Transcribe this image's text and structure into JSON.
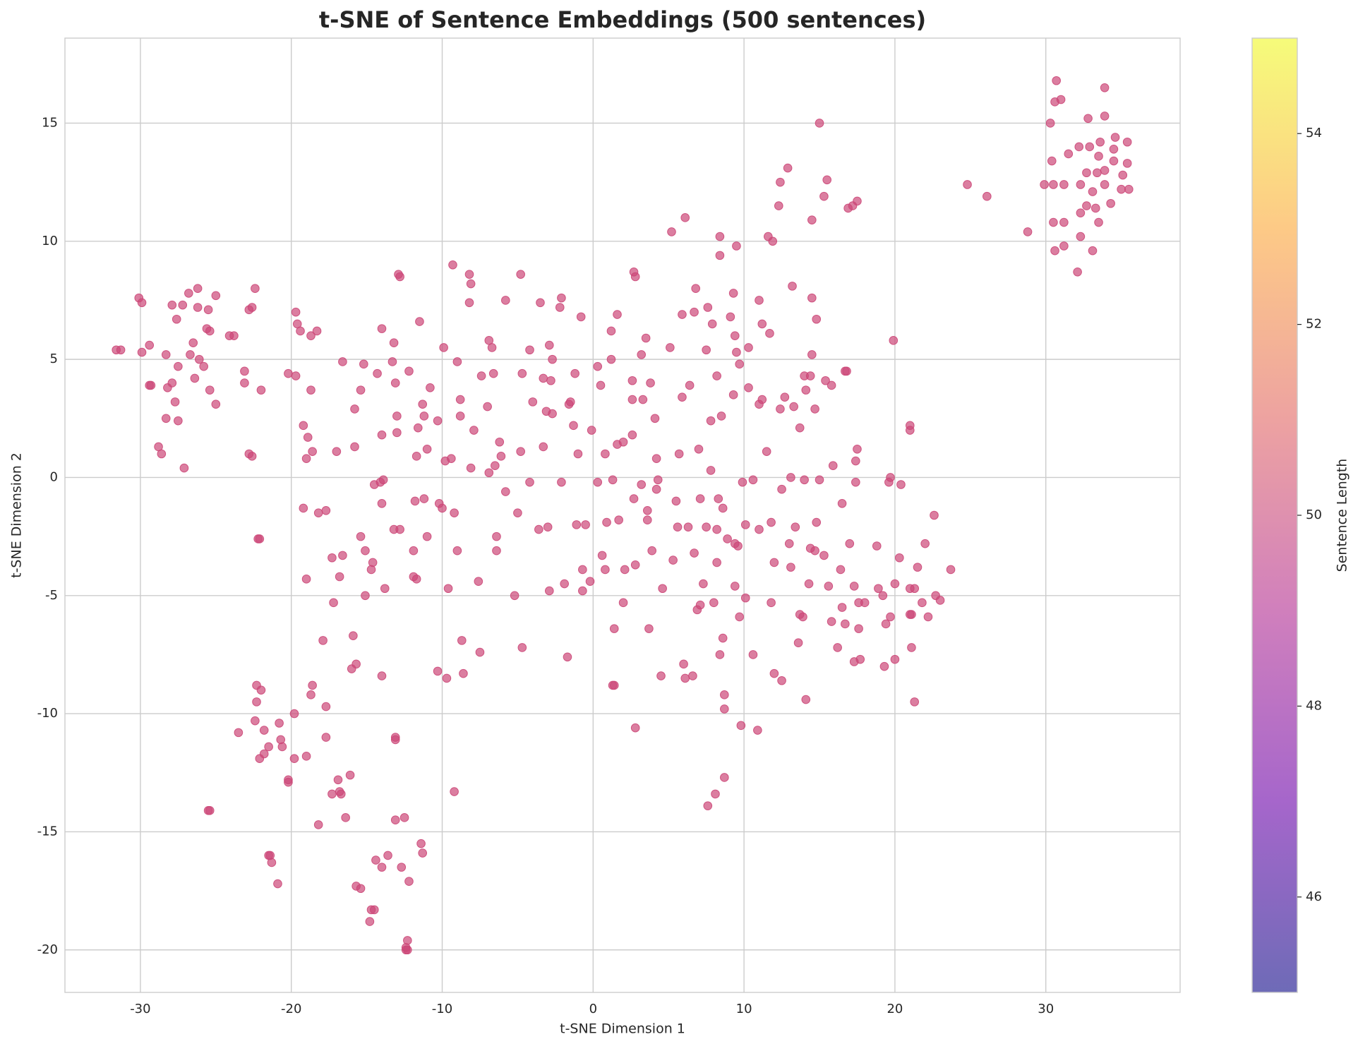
{
  "chart_data": {
    "type": "scatter",
    "title": "t-SNE of Sentence Embeddings (500 sentences)",
    "xlabel": "t-SNE Dimension 1",
    "ylabel": "t-SNE Dimension 2",
    "color": "#cc4778",
    "alpha": 0.7,
    "grid": true,
    "xlim": [
      -35,
      38.9
    ],
    "ylim": [
      -21.8,
      18.6
    ],
    "xticks": [
      -30,
      -20,
      -10,
      0,
      10,
      20,
      30
    ],
    "yticks": [
      -20,
      -15,
      -10,
      -5,
      0,
      5,
      10,
      15
    ],
    "colorbar": {
      "label": "Sentence Length",
      "lim": [
        45,
        55
      ],
      "ticks": [
        46,
        48,
        50,
        52,
        54
      ],
      "alpha": 0.6,
      "colors": [
        "#0d0887",
        "#6a00a8",
        "#b12a90",
        "#e16462",
        "#fca636",
        "#f0f921"
      ]
    },
    "x": [
      30.7,
      33.9,
      30.6,
      31,
      30.3,
      32.8,
      33.9,
      34.6,
      35.4,
      33.6,
      32.2,
      32.9,
      33.5,
      34.5,
      31.5,
      30.4,
      34.5,
      35.4,
      32.7,
      33.4,
      33.9,
      35.1,
      29.9,
      30.5,
      31.2,
      32.3,
      33.9,
      35,
      35.5,
      33.1,
      32.7,
      33.3,
      34.3,
      32.3,
      30.5,
      31.2,
      33.5,
      32.3,
      28.8,
      31.2,
      30.6,
      33.1,
      32.1,
      24.8,
      26.1,
      -31.6,
      -31.3,
      -30.1,
      -29.9,
      -29.9,
      -29.4,
      -29.4,
      -29.3,
      -28.3,
      -28.2,
      -27.9,
      -27.9,
      -27.7,
      -27.6,
      -27.5,
      -27.5,
      -28.3,
      -28.8,
      -28.6,
      -27.2,
      -26.8,
      -26.7,
      -26.5,
      -26.4,
      -26.2,
      -26.2,
      -26.1,
      -25.8,
      -25.6,
      -25.5,
      -25.4,
      -25.4,
      -25,
      -25,
      -27.1,
      -24.1,
      -23.8,
      -23.1,
      -23.1,
      -22.8,
      -22.6,
      -22.4,
      -22.8,
      -22.6,
      -22,
      -22.2,
      -22.1,
      -25.5,
      -25.4,
      -23.5,
      -22.4,
      -22.3,
      -22.3,
      -22,
      -21.8,
      -22.1,
      -21.8,
      -21.5,
      -21.5,
      -21.4,
      -21.3,
      -20.9,
      -20.8,
      -20.7,
      -20.6,
      -20.2,
      -20.2,
      -19.8,
      -19.8,
      -19,
      -18.7,
      -18.6,
      -18.2,
      -17.7,
      -17.7,
      -17.9,
      -17.3,
      -16.9,
      -16.8,
      -16.7,
      -16.4,
      -16.1,
      -16,
      -15.9,
      -15.7,
      -15.7,
      -15.4,
      -14.8,
      -14.7,
      -14.5,
      -14.4,
      -14,
      -14,
      -13.6,
      -13.1,
      -13.1,
      -13.1,
      -12.7,
      -12.5,
      -12.2,
      -12.3,
      -12.4,
      -12.4,
      -12.3,
      -11.4,
      -11.3,
      -9.2,
      -20.2,
      -19.7,
      -19.7,
      -19.6,
      -19.4,
      -19.2,
      -18.9,
      -19,
      -18.7,
      -18.7,
      -18.3,
      -18.6,
      -19.2,
      -19,
      -18.2,
      -17.7,
      -17.3,
      -17.2,
      -17,
      -16.8,
      -16.6,
      -16.6,
      -15.8,
      -15.8,
      -15.4,
      -15.4,
      -15.1,
      -15.2,
      -15.1,
      -14.7,
      -14.6,
      -14.5,
      -14.3,
      -14.1,
      -14,
      -14,
      -14,
      -13.9,
      -13.8,
      -13.3,
      -13.2,
      -13.2,
      -13.1,
      -13,
      -13,
      -12.9,
      -12.8,
      -12.8,
      -12.2,
      -11.9,
      -11.9,
      -11.8,
      -11.7,
      -11.7,
      -11.6,
      -11.5,
      -11.3,
      -11.2,
      -11.2,
      -11,
      -11,
      -10.8,
      -10.3,
      -10.3,
      -10.2,
      -10,
      -9.9,
      -9.8,
      -9.7,
      -9.6,
      -9.4,
      -9.3,
      -9.2,
      -9,
      -9,
      -8.8,
      -8.8,
      -8.7,
      -8.6,
      -8.2,
      -8.1,
      -8.2,
      -8.1,
      -7.9,
      -7.6,
      -7.5,
      -7.4,
      -7,
      -6.9,
      -6.9,
      -6.7,
      -6.6,
      -6.5,
      -6.4,
      -6.4,
      -6.2,
      -6.1,
      -5.8,
      -5.8,
      -5.2,
      -5,
      -4.8,
      -4.8,
      -4.7,
      -4.7,
      -4.2,
      -4.2,
      -4,
      -3.6,
      -3.5,
      -3.3,
      -3.3,
      -3.1,
      -3,
      -2.9,
      -2.9,
      -2.8,
      -2.7,
      -2.7,
      -2.2,
      -2.1,
      -2.1,
      -1.9,
      -1.7,
      -1.6,
      -1.5,
      -1.3,
      -1.2,
      -1.1,
      -1,
      -0.8,
      -0.7,
      -0.7,
      -0.5,
      -0.2,
      -0.1,
      0.3,
      0.3,
      0.5,
      0.6,
      0.8,
      0.8,
      0.9,
      1.2,
      1.2,
      1.3,
      1.3,
      1.4,
      1.4,
      1.6,
      1.6,
      1.7,
      2,
      2,
      2.1,
      2.6,
      2.6,
      2.6,
      2.7,
      2.7,
      2.8,
      2.8,
      2.8,
      3.2,
      3.2,
      3.3,
      3.5,
      3.6,
      3.6,
      3.7,
      3.8,
      3.9,
      4.1,
      4.2,
      4.2,
      4.3,
      4.6,
      4.5,
      5.1,
      5.2,
      5.3,
      5.5,
      5.6,
      5.7,
      5.9,
      5.9,
      6,
      6.1,
      6.1,
      6.3,
      6.4,
      6.6,
      6.7,
      6.7,
      6.8,
      6.9,
      7,
      7.1,
      7.1,
      7.3,
      7.5,
      7.5,
      7.6,
      7.6,
      7.8,
      7.8,
      7.9,
      8,
      8.1,
      8.2,
      8.2,
      8.2,
      8.3,
      8.4,
      8.4,
      8.4,
      8.5,
      8.6,
      8.6,
      8.7,
      8.7,
      8.7,
      8.9,
      9.1,
      9.3,
      9.3,
      9.4,
      9.4,
      9.4,
      9.5,
      9.5,
      9.6,
      9.7,
      9.7,
      9.8,
      9.9,
      10.1,
      10.1,
      10.3,
      10.3,
      10.6,
      10.6,
      10.9,
      11,
      11,
      11,
      11.2,
      11.2,
      11.5,
      11.6,
      11.7,
      11.8,
      11.8,
      11.9,
      12,
      12,
      12.3,
      12.4,
      12.4,
      12.5,
      12.5,
      12.7,
      12.9,
      13,
      13.1,
      13.1,
      13.2,
      13.3,
      13.4,
      13.6,
      13.7,
      13.7,
      13.9,
      14,
      14,
      14.1,
      14.1,
      14.3,
      14.4,
      14.4,
      14.5,
      14.5,
      14.5,
      14.7,
      14.7,
      14.8,
      14.8,
      15,
      15,
      15.3,
      15.3,
      15.4,
      15.5,
      15.6,
      15.8,
      15.8,
      15.9,
      16.2,
      16.4,
      16.5,
      16.5,
      16.7,
      16.7,
      16.8,
      16.9,
      17,
      17.2,
      17.3,
      17.3,
      17.4,
      17.4,
      17.5,
      17.5,
      17.6,
      17.6,
      17.7,
      18,
      18.8,
      18.9,
      19.2,
      19.3,
      19.4,
      19.6,
      19.7,
      19.7,
      19.9,
      20,
      20,
      20.3,
      20.4,
      21,
      21,
      21,
      21,
      21.1,
      21.1,
      21.3,
      21.3,
      21.5,
      21.8,
      22,
      22.2,
      22.6,
      22.7,
      23,
      23.7
    ],
    "y": [
      16.8,
      16.5,
      15.9,
      16,
      15,
      15.2,
      15.3,
      14.4,
      14.2,
      14.2,
      14,
      14,
      13.6,
      13.9,
      13.7,
      13.4,
      13.4,
      13.3,
      12.9,
      12.9,
      13,
      12.8,
      12.4,
      12.4,
      12.4,
      12.4,
      12.4,
      12.2,
      12.2,
      12.1,
      11.5,
      11.4,
      11.6,
      11.2,
      10.8,
      10.8,
      10.8,
      10.2,
      10.4,
      9.8,
      9.6,
      9.6,
      8.7,
      12.4,
      11.9,
      5.4,
      5.4,
      7.6,
      7.4,
      5.3,
      5.6,
      3.9,
      3.9,
      5.2,
      3.8,
      7.3,
      4,
      3.2,
      6.7,
      4.7,
      2.4,
      2.5,
      1.3,
      1,
      7.3,
      7.8,
      5.2,
      5.7,
      4.2,
      8,
      7.2,
      5,
      4.7,
      6.3,
      7.1,
      6.2,
      3.7,
      7.7,
      3.1,
      0.4,
      6,
      6,
      4.5,
      4,
      7.1,
      7.2,
      8,
      1,
      0.9,
      3.7,
      -2.6,
      -2.6,
      -14.1,
      -14.1,
      -10.8,
      -10.3,
      -8.8,
      -9.5,
      -9,
      -10.7,
      -11.9,
      -11.7,
      -11.4,
      -16,
      -16,
      -16.3,
      -17.2,
      -10.4,
      -11.1,
      -11.4,
      -12.8,
      -12.9,
      -10,
      -11.9,
      -11.8,
      -9.2,
      -8.8,
      -14.7,
      -9.7,
      -11,
      -6.9,
      -13.4,
      -12.8,
      -13.3,
      -13.4,
      -14.4,
      -12.6,
      -8.1,
      -6.7,
      -7.9,
      -17.3,
      -17.4,
      -18.8,
      -18.3,
      -18.3,
      -16.2,
      -16.5,
      -8.4,
      -16,
      -14.5,
      -11.1,
      -11,
      -16.5,
      -14.4,
      -17.1,
      -19.6,
      -19.9,
      -20,
      -20,
      -15.5,
      -15.9,
      -13.3,
      4.4,
      4.3,
      7,
      6.5,
      6.2,
      2.2,
      1.7,
      0.8,
      3.7,
      6,
      6.2,
      1.1,
      -1.3,
      -4.3,
      -1.5,
      -1.4,
      -3.4,
      -5.3,
      1.1,
      -4.2,
      -3.3,
      4.9,
      1.3,
      2.9,
      3.7,
      -2.5,
      -3.1,
      4.8,
      -5,
      -3.9,
      -3.6,
      -0.3,
      4.4,
      -0.2,
      1.8,
      6.3,
      -1.1,
      -0.1,
      -4.7,
      4.9,
      -2.2,
      5.7,
      4,
      2.6,
      1.9,
      8.6,
      8.5,
      -2.2,
      4.5,
      -3.1,
      -4.2,
      -1,
      -4.3,
      0.9,
      2.1,
      6.6,
      3.1,
      2.6,
      -0.9,
      1.2,
      -2.5,
      3.8,
      2.4,
      -8.2,
      -1.1,
      -1.3,
      5.5,
      0.7,
      -8.5,
      -4.7,
      0.8,
      9,
      -1.5,
      4.9,
      -3.1,
      3.3,
      2.6,
      -6.9,
      -8.3,
      8.6,
      8.2,
      7.4,
      0.4,
      2,
      -4.4,
      -7.4,
      4.3,
      3,
      5.8,
      0.2,
      5.5,
      4.4,
      0.5,
      -2.5,
      -3.1,
      1.5,
      0.9,
      7.5,
      -0.6,
      -5,
      -1.5,
      8.6,
      1.1,
      4.4,
      -7.2,
      5.4,
      -0.2,
      3.2,
      -2.2,
      7.4,
      4.2,
      1.3,
      2.8,
      -2.1,
      -4.8,
      5.6,
      4.1,
      2.7,
      5,
      7.2,
      7.6,
      -0.2,
      -4.5,
      -7.6,
      3.1,
      3.2,
      2.2,
      4.4,
      -2,
      1,
      6.8,
      -3.9,
      -4.8,
      -2,
      -4.4,
      2,
      -0.2,
      4.7,
      3.9,
      -3.3,
      -3.9,
      1,
      -1.9,
      6.2,
      5,
      -0.1,
      -8.8,
      -8.8,
      -6.4,
      1.4,
      6.9,
      -1.8,
      -5.3,
      1.5,
      -3.9,
      4.1,
      3.3,
      1.8,
      -0.9,
      8.7,
      8.5,
      -3.7,
      -10.6,
      5.2,
      -0.3,
      3.3,
      5.9,
      -1.8,
      -1.4,
      -6.4,
      4,
      -3.1,
      2.5,
      0.8,
      -0.5,
      -0.1,
      -4.7,
      -8.4,
      5.5,
      10.4,
      -3.5,
      -1,
      -2.1,
      1,
      6.9,
      3.4,
      -7.9,
      11,
      -8.5,
      -2.1,
      3.9,
      -8.4,
      -3.2,
      7,
      8,
      -5.6,
      1.2,
      -0.9,
      -5.4,
      -4.5,
      5.4,
      -2.1,
      7.2,
      -13.9,
      2.4,
      0.3,
      6.5,
      -5.3,
      -13.4,
      4.3,
      -2.2,
      -3.6,
      -0.9,
      10.2,
      9.4,
      -7.5,
      2.6,
      -1.3,
      -6.8,
      -9.2,
      -9.8,
      -12.7,
      -2.6,
      6.8,
      7.8,
      3.5,
      6,
      -2.8,
      -4.6,
      9.8,
      5.3,
      -2.9,
      4.8,
      -5.9,
      -10.5,
      -0.2,
      -5.1,
      -2,
      3.8,
      5.5,
      -7.5,
      -0.1,
      -10.7,
      7.5,
      3.1,
      -2.2,
      6.5,
      3.3,
      1.1,
      10.2,
      6.1,
      -5.3,
      -1.9,
      10,
      -3.6,
      -8.3,
      11.5,
      12.5,
      2.9,
      -0.5,
      -8.6,
      3.4,
      13.1,
      -2.8,
      0,
      -3.8,
      8.1,
      3,
      -2.1,
      -7,
      -5.8,
      2.1,
      -5.9,
      -0.1,
      4.3,
      3.7,
      -9.4,
      -4.5,
      -3,
      4.3,
      10.9,
      7.6,
      5.2,
      2.9,
      -3.1,
      6.7,
      -1.9,
      15,
      -0.1,
      11.9,
      -3.3,
      4.1,
      12.6,
      -4.6,
      3.9,
      -6.1,
      0.5,
      -7.2,
      -3.9,
      -1.1,
      -5.5,
      -6.2,
      4.5,
      4.5,
      11.4,
      -2.8,
      11.5,
      -4.6,
      -7.8,
      -0.2,
      0.7,
      1.2,
      11.7,
      -6.4,
      -5.3,
      -7.7,
      -5.3,
      -2.9,
      -4.7,
      -5,
      -8,
      -6.2,
      -0.2,
      0,
      -5.9,
      5.8,
      -4.5,
      -7.7,
      -3.4,
      -0.3,
      2.2,
      2,
      -4.7,
      -5.8,
      -5.8,
      -7.2,
      -4.7,
      -9.5,
      -3.8,
      -5.3,
      -2.8,
      -5.9,
      -1.6,
      -5,
      -5.2,
      -3.9
    ]
  }
}
